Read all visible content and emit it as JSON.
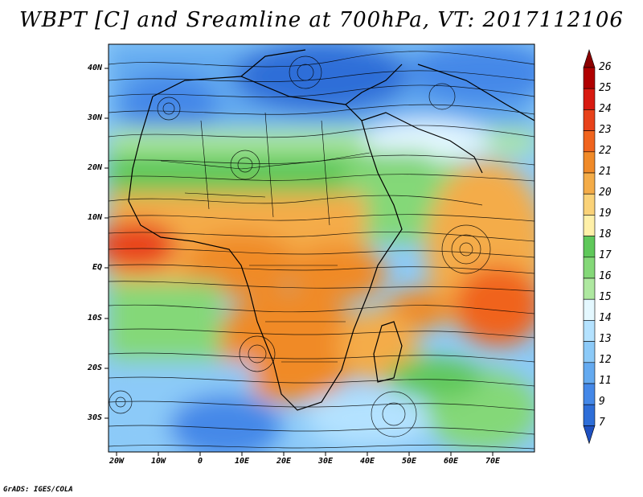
{
  "title": "WBPT [C] and Sreamline at 700hPa, VT: 2017112106",
  "lat_labels": [
    "40N",
    "30N",
    "20N",
    "10N",
    "EQ",
    "10S",
    "20S",
    "30S"
  ],
  "lon_labels": [
    "20W",
    "10W",
    "0",
    "10E",
    "20E",
    "30E",
    "40E",
    "50E",
    "60E",
    "70E"
  ],
  "colorbar": {
    "labels": [
      "26",
      "25",
      "24",
      "23",
      "22",
      "21",
      "20",
      "19",
      "18",
      "17",
      "16",
      "15",
      "14",
      "13",
      "12",
      "11",
      "9",
      "7"
    ],
    "colors": [
      "#8b0000",
      "#b00000",
      "#d81a10",
      "#e8421a",
      "#f0641e",
      "#f08a28",
      "#f4ac48",
      "#fad278",
      "#fff0a8",
      "#5fc85a",
      "#84d878",
      "#aee8a0",
      "#e4f8ff",
      "#b4e2ff",
      "#8ccaf8",
      "#64aaf0",
      "#4488e8",
      "#2e6ed8",
      "#1e50c0"
    ]
  },
  "credit": "GrADS: IGES/COLA"
}
